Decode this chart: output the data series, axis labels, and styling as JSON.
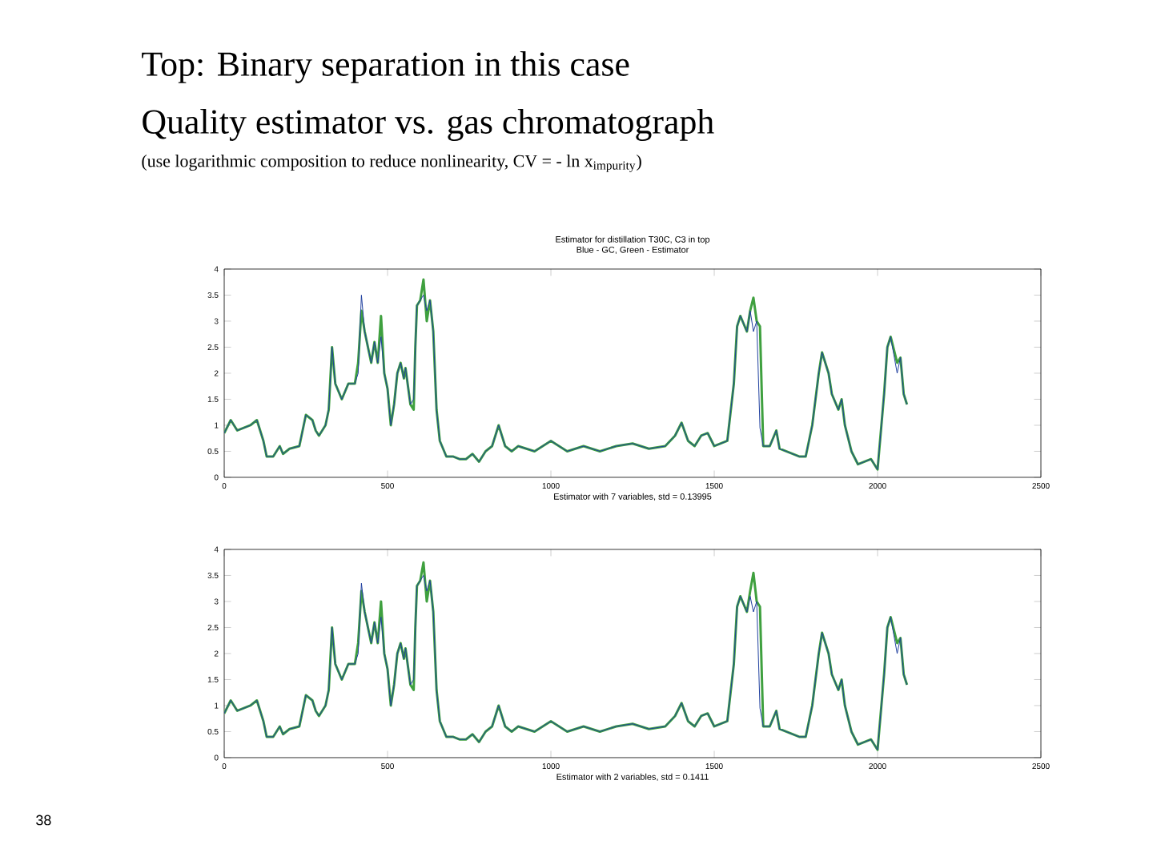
{
  "chart_data": [
    {
      "type": "line",
      "title": "Estimator for distillation T30C, C3 in top",
      "subtitle": "Blue - GC, Green - Estimator",
      "xlabel": "Estimator with 7 variables, std = 0.13995",
      "annotations": [
        "Top: Binary separation in this case",
        "Quality estimator vs. gas chromatograph",
        "(use logarithmic composition to reduce nonlinearity, CV = - ln x$_{impurity}$)",
        "38"
      ],
      "x": [
        0,
        20,
        40,
        80,
        100,
        120,
        130,
        150,
        170,
        180,
        200,
        230,
        250,
        270,
        280,
        290,
        310,
        320,
        330,
        340,
        360,
        380,
        400,
        410,
        420,
        430,
        440,
        450,
        460,
        470,
        480,
        490,
        500,
        510,
        520,
        530,
        540,
        550,
        555,
        570,
        580,
        585,
        590,
        600,
        610,
        620,
        630,
        640,
        650,
        660,
        680,
        700,
        720,
        740,
        760,
        780,
        800,
        820,
        840,
        860,
        880,
        900,
        950,
        1000,
        1050,
        1100,
        1150,
        1200,
        1250,
        1300,
        1350,
        1380,
        1400,
        1420,
        1440,
        1460,
        1480,
        1500,
        1540,
        1560,
        1570,
        1580,
        1600,
        1610,
        1620,
        1630,
        1640,
        1650,
        1670,
        1690,
        1700,
        1720,
        1740,
        1760,
        1780,
        1800,
        1820,
        1830,
        1850,
        1860,
        1880,
        1890,
        1900,
        1920,
        1940,
        1960,
        1980,
        2000,
        2020,
        2030,
        2040,
        2060,
        2070,
        2080,
        2090
      ],
      "series": [
        {
          "color": "#1f3f9f",
          "values": [
            0.85,
            1.1,
            0.9,
            1.0,
            1.1,
            0.7,
            0.4,
            0.4,
            0.6,
            0.45,
            0.55,
            0.6,
            1.2,
            1.1,
            0.9,
            0.8,
            1.0,
            1.3,
            2.5,
            1.8,
            1.5,
            1.8,
            1.8,
            2.0,
            3.5,
            2.8,
            2.5,
            2.2,
            2.6,
            2.2,
            2.7,
            2.0,
            1.7,
            1.0,
            1.4,
            2.0,
            2.2,
            1.9,
            2.1,
            1.4,
            1.5,
            2.5,
            3.3,
            3.4,
            3.5,
            3.2,
            3.4,
            2.8,
            1.3,
            0.7,
            0.4,
            0.4,
            0.35,
            0.35,
            0.45,
            0.3,
            0.5,
            0.6,
            1.0,
            0.6,
            0.5,
            0.6,
            0.5,
            0.7,
            0.5,
            0.6,
            0.5,
            0.6,
            0.65,
            0.55,
            0.6,
            0.8,
            1.05,
            0.7,
            0.6,
            0.8,
            0.85,
            0.6,
            0.7,
            1.8,
            2.9,
            3.1,
            2.8,
            3.2,
            2.8,
            3.0,
            0.95,
            0.6,
            0.6,
            0.9,
            0.55,
            0.5,
            0.45,
            0.4,
            0.4,
            1.0,
            2.0,
            2.4,
            2.0,
            1.6,
            1.3,
            1.5,
            1.0,
            0.5,
            0.25,
            0.3,
            0.35,
            0.15,
            1.6,
            2.5,
            2.7,
            2.0,
            2.3,
            1.6,
            1.4
          ]
        },
        {
          "color": "#3fa03f",
          "values": [
            0.85,
            1.1,
            0.9,
            1.0,
            1.1,
            0.7,
            0.4,
            0.4,
            0.6,
            0.45,
            0.55,
            0.6,
            1.2,
            1.1,
            0.9,
            0.8,
            1.0,
            1.3,
            2.5,
            1.8,
            1.5,
            1.8,
            1.8,
            2.2,
            3.2,
            2.8,
            2.5,
            2.2,
            2.6,
            2.2,
            3.1,
            2.0,
            1.7,
            1.0,
            1.4,
            2.0,
            2.2,
            1.9,
            2.1,
            1.4,
            1.3,
            2.5,
            3.3,
            3.4,
            3.8,
            3.0,
            3.4,
            2.8,
            1.3,
            0.7,
            0.4,
            0.4,
            0.35,
            0.35,
            0.45,
            0.3,
            0.5,
            0.6,
            1.0,
            0.6,
            0.5,
            0.6,
            0.5,
            0.7,
            0.5,
            0.6,
            0.5,
            0.6,
            0.65,
            0.55,
            0.6,
            0.8,
            1.05,
            0.7,
            0.6,
            0.8,
            0.85,
            0.6,
            0.7,
            1.8,
            2.9,
            3.1,
            2.8,
            3.2,
            3.45,
            3.0,
            2.9,
            0.6,
            0.6,
            0.9,
            0.55,
            0.5,
            0.45,
            0.4,
            0.4,
            1.0,
            2.0,
            2.4,
            2.0,
            1.6,
            1.3,
            1.5,
            1.0,
            0.5,
            0.25,
            0.3,
            0.35,
            0.15,
            1.6,
            2.5,
            2.7,
            2.2,
            2.3,
            1.6,
            1.4
          ]
        }
      ],
      "xlim": [
        0,
        2500
      ],
      "ylim": [
        0,
        4
      ],
      "xticks": [
        0,
        500,
        1000,
        1500,
        2000,
        2500
      ],
      "yticks": [
        0,
        0.5,
        1,
        1.5,
        2,
        2.5,
        3,
        3.5,
        4
      ],
      "marker": "none"
    },
    {
      "type": "line",
      "xlabel": "Estimator with 2 variables, std = 0.1411",
      "x": [
        0,
        20,
        40,
        80,
        100,
        120,
        130,
        150,
        170,
        180,
        200,
        230,
        250,
        270,
        280,
        290,
        310,
        320,
        330,
        340,
        360,
        380,
        400,
        410,
        420,
        430,
        440,
        450,
        460,
        470,
        480,
        490,
        500,
        510,
        520,
        530,
        540,
        550,
        555,
        570,
        580,
        585,
        590,
        600,
        610,
        620,
        630,
        640,
        650,
        660,
        680,
        700,
        720,
        740,
        760,
        780,
        800,
        820,
        840,
        860,
        880,
        900,
        950,
        1000,
        1050,
        1100,
        1150,
        1200,
        1250,
        1300,
        1350,
        1380,
        1400,
        1420,
        1440,
        1460,
        1480,
        1500,
        1540,
        1560,
        1570,
        1580,
        1600,
        1610,
        1620,
        1630,
        1640,
        1650,
        1670,
        1690,
        1700,
        1720,
        1740,
        1760,
        1780,
        1800,
        1820,
        1830,
        1850,
        1860,
        1880,
        1890,
        1900,
        1920,
        1940,
        1960,
        1980,
        2000,
        2020,
        2030,
        2040,
        2060,
        2070,
        2080,
        2090
      ],
      "series": [
        {
          "color": "#1f3f9f",
          "values": [
            0.85,
            1.1,
            0.9,
            1.0,
            1.1,
            0.7,
            0.4,
            0.4,
            0.6,
            0.45,
            0.55,
            0.6,
            1.2,
            1.1,
            0.9,
            0.8,
            1.0,
            1.3,
            2.5,
            1.8,
            1.5,
            1.8,
            1.8,
            2.0,
            3.35,
            2.8,
            2.5,
            2.2,
            2.6,
            2.2,
            2.7,
            2.0,
            1.7,
            1.0,
            1.4,
            2.0,
            2.2,
            1.9,
            2.1,
            1.4,
            1.5,
            2.5,
            3.3,
            3.4,
            3.5,
            3.2,
            3.4,
            2.8,
            1.3,
            0.7,
            0.4,
            0.4,
            0.35,
            0.35,
            0.45,
            0.3,
            0.5,
            0.6,
            1.0,
            0.6,
            0.5,
            0.6,
            0.5,
            0.7,
            0.5,
            0.6,
            0.5,
            0.6,
            0.65,
            0.55,
            0.6,
            0.8,
            1.05,
            0.7,
            0.6,
            0.8,
            0.85,
            0.6,
            0.7,
            1.8,
            2.9,
            3.1,
            2.8,
            3.1,
            2.8,
            3.0,
            0.95,
            0.6,
            0.6,
            0.9,
            0.55,
            0.5,
            0.45,
            0.4,
            0.4,
            1.0,
            2.0,
            2.4,
            2.0,
            1.6,
            1.3,
            1.5,
            1.0,
            0.5,
            0.25,
            0.3,
            0.35,
            0.15,
            1.6,
            2.5,
            2.7,
            2.0,
            2.3,
            1.6,
            1.4
          ]
        },
        {
          "color": "#3fa03f",
          "values": [
            0.85,
            1.1,
            0.9,
            1.0,
            1.1,
            0.7,
            0.4,
            0.4,
            0.6,
            0.45,
            0.55,
            0.6,
            1.2,
            1.1,
            0.9,
            0.8,
            1.0,
            1.3,
            2.5,
            1.8,
            1.5,
            1.8,
            1.8,
            2.2,
            3.2,
            2.8,
            2.5,
            2.2,
            2.6,
            2.2,
            3.0,
            2.0,
            1.7,
            1.0,
            1.4,
            2.0,
            2.2,
            1.9,
            2.1,
            1.4,
            1.3,
            2.5,
            3.3,
            3.4,
            3.75,
            3.0,
            3.4,
            2.8,
            1.3,
            0.7,
            0.4,
            0.4,
            0.35,
            0.35,
            0.45,
            0.3,
            0.5,
            0.6,
            1.0,
            0.6,
            0.5,
            0.6,
            0.5,
            0.7,
            0.5,
            0.6,
            0.5,
            0.6,
            0.65,
            0.55,
            0.6,
            0.8,
            1.05,
            0.7,
            0.6,
            0.8,
            0.85,
            0.6,
            0.7,
            1.8,
            2.9,
            3.1,
            2.8,
            3.2,
            3.55,
            3.0,
            2.9,
            0.6,
            0.6,
            0.9,
            0.55,
            0.5,
            0.45,
            0.4,
            0.4,
            1.0,
            2.0,
            2.4,
            2.0,
            1.6,
            1.3,
            1.5,
            1.0,
            0.5,
            0.25,
            0.3,
            0.35,
            0.15,
            1.6,
            2.5,
            2.7,
            2.2,
            2.3,
            1.6,
            1.4
          ]
        }
      ],
      "xlim": [
        0,
        2500
      ],
      "ylim": [
        0,
        4
      ],
      "xticks": [
        0,
        500,
        1000,
        1500,
        2000,
        2500
      ],
      "yticks": [
        0,
        0.5,
        1,
        1.5,
        2,
        2.5,
        3,
        3.5,
        4
      ],
      "marker": "none"
    }
  ]
}
